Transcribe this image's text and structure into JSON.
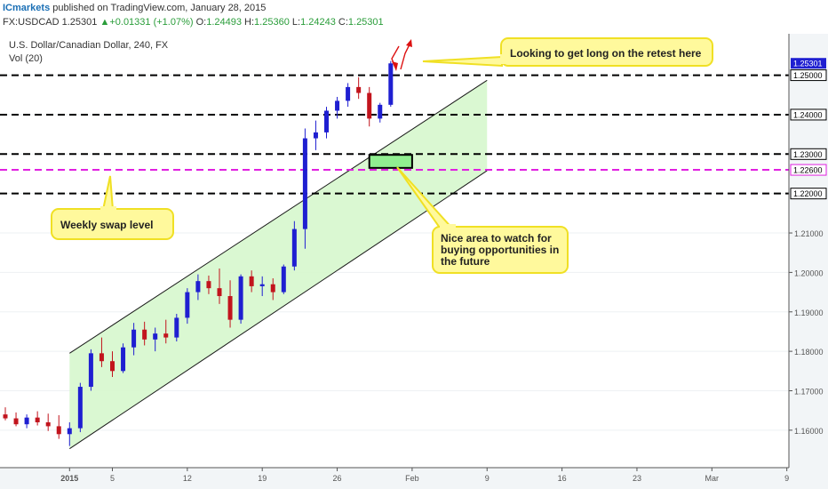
{
  "header": {
    "brand": "ICmarkets",
    "published": " published on TradingView.com, January 28, 2015",
    "symbol": "FX:USDCAD",
    "last": "1.25301",
    "change_arrow": "▲",
    "change": "+0.01331 (+1.07%)",
    "o_label": "O:",
    "o": "1.24493",
    "h_label": "H:",
    "h": "1.25360",
    "l_label": "L:",
    "l": "1.24243",
    "c_label": "C:",
    "c": "1.25301"
  },
  "chart_data": {
    "type": "candlestick",
    "title": "U.S. Dollar/Canadian Dollar, 240, FX",
    "subtitle": "Vol (20)",
    "ylim": [
      1.1505,
      1.2605
    ],
    "y_ticks": [
      "1.16000",
      "1.17000",
      "1.18000",
      "1.19000",
      "1.20000",
      "1.21000",
      "1.22000",
      "1.23000",
      "1.24000",
      "1.25000"
    ],
    "x_ticks": [
      "2015",
      "5",
      "12",
      "19",
      "26",
      "Feb",
      "9",
      "16",
      "23",
      "Mar",
      "9"
    ],
    "last_price_label": "1.25301",
    "last_price": 1.25301,
    "colors": {
      "up": "#1f1fd1",
      "down": "#c2141d",
      "channel": "#d6f7cd",
      "zone": "#90ee90",
      "swap": "#e020e0",
      "callout": "#fff99c",
      "callout_border": "#f0e024"
    },
    "levels": [
      {
        "label": "1.25000",
        "value": 1.25,
        "color": "#000000"
      },
      {
        "label": "1.24000",
        "value": 1.24,
        "color": "#000000"
      },
      {
        "label": "1.23000",
        "value": 1.23,
        "color": "#000000"
      },
      {
        "label": "1.22600",
        "value": 1.226,
        "color": "#e020e0"
      },
      {
        "label": "1.22000",
        "value": 1.22,
        "color": "#000000"
      }
    ],
    "channel": {
      "lower": [
        [
          "2015-01-01",
          1.1553
        ],
        [
          "2015-02-09",
          1.2258
        ]
      ],
      "upper": [
        [
          "2015-01-01",
          1.1795
        ],
        [
          "2015-02-09",
          1.2487
        ]
      ]
    },
    "zone": {
      "x": [
        "2015-01-29",
        "2015-02-02"
      ],
      "y": [
        1.2265,
        1.2298
      ]
    },
    "annotations": [
      "Looking to get long on the retest here",
      "Weekly swap level",
      "Nice area to watch for buying opportunities in the future"
    ],
    "candles": [
      [
        "2014-12-26",
        1.164,
        1.1658,
        1.1625,
        1.163
      ],
      [
        "2014-12-27",
        1.163,
        1.1645,
        1.161,
        1.1615
      ],
      [
        "2014-12-28",
        1.1615,
        1.164,
        1.1605,
        1.1632
      ],
      [
        "2014-12-29",
        1.1632,
        1.1648,
        1.1612,
        1.162
      ],
      [
        "2014-12-30",
        1.162,
        1.1642,
        1.1598,
        1.161
      ],
      [
        "2014-12-31",
        1.161,
        1.1638,
        1.1578,
        1.159
      ],
      [
        "2015-01-01",
        1.159,
        1.162,
        1.156,
        1.1605
      ],
      [
        "2015-01-02",
        1.1605,
        1.172,
        1.1595,
        1.171
      ],
      [
        "2015-01-03",
        1.171,
        1.1805,
        1.17,
        1.1795
      ],
      [
        "2015-01-04",
        1.1795,
        1.1835,
        1.176,
        1.1775
      ],
      [
        "2015-01-05",
        1.1775,
        1.18,
        1.1735,
        1.175
      ],
      [
        "2015-01-06",
        1.175,
        1.182,
        1.1745,
        1.181
      ],
      [
        "2015-01-07",
        1.181,
        1.1872,
        1.179,
        1.1855
      ],
      [
        "2015-01-08",
        1.1855,
        1.1875,
        1.1815,
        1.183
      ],
      [
        "2015-01-09",
        1.183,
        1.186,
        1.18,
        1.1845
      ],
      [
        "2015-01-10",
        1.1845,
        1.188,
        1.182,
        1.1835
      ],
      [
        "2015-01-11",
        1.1835,
        1.1895,
        1.1825,
        1.1885
      ],
      [
        "2015-01-12",
        1.1885,
        1.196,
        1.187,
        1.195
      ],
      [
        "2015-01-13",
        1.195,
        1.1995,
        1.193,
        1.1978
      ],
      [
        "2015-01-14",
        1.1978,
        1.1992,
        1.1945,
        1.196
      ],
      [
        "2015-01-15",
        1.196,
        1.201,
        1.192,
        1.194
      ],
      [
        "2015-01-16",
        1.194,
        1.198,
        1.186,
        1.188
      ],
      [
        "2015-01-17",
        1.188,
        1.1995,
        1.187,
        1.199
      ],
      [
        "2015-01-18",
        1.199,
        1.2005,
        1.195,
        1.1965
      ],
      [
        "2015-01-19",
        1.1965,
        1.199,
        1.194,
        1.197
      ],
      [
        "2015-01-20",
        1.197,
        1.1985,
        1.193,
        1.195
      ],
      [
        "2015-01-21",
        1.195,
        1.202,
        1.1945,
        1.2015
      ],
      [
        "2015-01-22",
        1.2015,
        1.213,
        1.2005,
        1.211
      ],
      [
        "2015-01-23",
        1.211,
        1.2365,
        1.206,
        1.234
      ],
      [
        "2015-01-24",
        1.234,
        1.2385,
        1.231,
        1.2355
      ],
      [
        "2015-01-25",
        1.2355,
        1.242,
        1.234,
        1.241
      ],
      [
        "2015-01-26",
        1.241,
        1.2445,
        1.239,
        1.2435
      ],
      [
        "2015-01-27",
        1.2435,
        1.248,
        1.242,
        1.247
      ],
      [
        "2015-01-28",
        1.247,
        1.2495,
        1.244,
        1.2455
      ],
      [
        "2015-01-29",
        1.2455,
        1.247,
        1.237,
        1.239
      ],
      [
        "2015-01-30",
        1.239,
        1.243,
        1.238,
        1.2425
      ],
      [
        "2015-01-31",
        1.2425,
        1.2536,
        1.242,
        1.253
      ]
    ]
  }
}
